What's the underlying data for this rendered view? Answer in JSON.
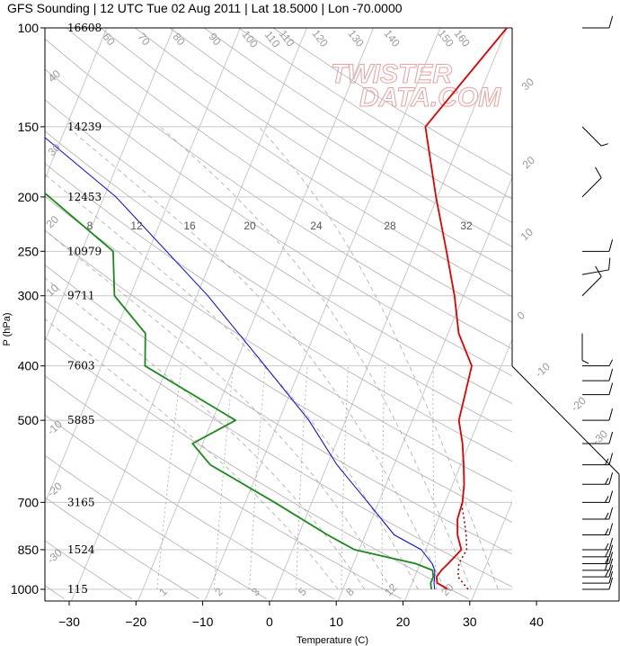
{
  "title": "GFS Sounding | 12 UTC Tue 02 Aug 2011 | Lat 18.5000 | Lon -70.0000",
  "watermark": [
    "TWISTER",
    "DATA.COM"
  ],
  "chart_data": {
    "type": "skew-t",
    "xlabel": "Temperature (C)",
    "ylabel": "P (hPa)",
    "x_ticks": [
      -30,
      -20,
      -10,
      0,
      10,
      20,
      30,
      40
    ],
    "pressure_ticks": [
      {
        "p": 100,
        "label": "100",
        "height": "16608"
      },
      {
        "p": 150,
        "label": "150",
        "height": "14239"
      },
      {
        "p": 200,
        "label": "200",
        "height": "12453"
      },
      {
        "p": 250,
        "label": "250",
        "height": "10979"
      },
      {
        "p": 300,
        "label": "300",
        "height": "9711"
      },
      {
        "p": 400,
        "label": "400",
        "height": "7603"
      },
      {
        "p": 500,
        "label": "500",
        "height": "5885"
      },
      {
        "p": 700,
        "label": "700",
        "height": "3165"
      },
      {
        "p": 850,
        "label": "850",
        "height": "1524"
      },
      {
        "p": 1000,
        "label": "1000",
        "height": "115"
      }
    ],
    "mixing_ratio_labels": [
      "8",
      "12",
      "16",
      "20",
      "24",
      "28",
      "32"
    ],
    "isotherm_labels": [
      "110",
      "100",
      "90",
      "80",
      "70",
      "60",
      "50",
      "40",
      "30",
      "20",
      "10",
      "0",
      "-10",
      "-20",
      "-30",
      "-40"
    ],
    "dry_adiabat_labels": [
      "160",
      "150",
      "140",
      "130",
      "120",
      "110",
      "100",
      "90",
      "80",
      "70",
      "60",
      "50",
      "40",
      "30",
      "20",
      "10"
    ],
    "moist_adiabat_labels": [
      "1",
      "2",
      "3",
      "5",
      "8",
      "12",
      "20"
    ],
    "temperature": {
      "color": "#e00000",
      "points": [
        [
          1000,
          26.5
        ],
        [
          975,
          24.5
        ],
        [
          950,
          24.0
        ],
        [
          925,
          24.3
        ],
        [
          900,
          24.9
        ],
        [
          850,
          26.0
        ],
        [
          800,
          24.5
        ],
        [
          750,
          23.5
        ],
        [
          700,
          23.2
        ],
        [
          650,
          22.3
        ],
        [
          600,
          21.0
        ],
        [
          550,
          19.5
        ],
        [
          500,
          17.5
        ],
        [
          450,
          16.8
        ],
        [
          400,
          16.0
        ],
        [
          350,
          12.0
        ],
        [
          300,
          9.0
        ],
        [
          250,
          5.0
        ],
        [
          200,
          0.0
        ],
        [
          150,
          -6.0
        ],
        [
          100,
          0.0
        ]
      ]
    },
    "parcel_virtual_temperature": {
      "color": "#8b0000",
      "style": "dotted",
      "points": [
        [
          1000,
          29.5
        ],
        [
          950,
          27.2
        ],
        [
          900,
          26.5
        ],
        [
          850,
          26.8
        ],
        [
          800,
          25.8
        ],
        [
          750,
          24.5
        ],
        [
          700,
          23.0
        ]
      ]
    },
    "dewpoint": {
      "color": "#1a8a1a",
      "points": [
        [
          1000,
          24.0
        ],
        [
          975,
          23.5
        ],
        [
          950,
          23.5
        ],
        [
          925,
          23.0
        ],
        [
          900,
          20.0
        ],
        [
          850,
          10.0
        ],
        [
          800,
          5.0
        ],
        [
          700,
          -5.0
        ],
        [
          600,
          -17.0
        ],
        [
          550,
          -21.0
        ],
        [
          500,
          -16.0
        ],
        [
          400,
          -33.0
        ],
        [
          350,
          -35.0
        ],
        [
          300,
          -42.0
        ],
        [
          250,
          -45.0
        ],
        [
          200,
          -58.0
        ],
        [
          150,
          -75.0
        ],
        [
          100,
          -78.0
        ]
      ]
    },
    "wetbulb": {
      "color": "#0000ee",
      "points": [
        [
          1000,
          24.5
        ],
        [
          975,
          24.0
        ],
        [
          950,
          23.7
        ],
        [
          925,
          23.3
        ],
        [
          900,
          22.5
        ],
        [
          850,
          20.0
        ],
        [
          800,
          15.0
        ],
        [
          700,
          9.0
        ],
        [
          600,
          2.0
        ],
        [
          500,
          -5.0
        ],
        [
          400,
          -15.0
        ],
        [
          300,
          -28.0
        ],
        [
          200,
          -48.0
        ],
        [
          150,
          -65.0
        ],
        [
          100,
          -72.0
        ]
      ]
    },
    "wind_barbs": [
      {
        "p": 100,
        "dir": 90,
        "speed": 10
      },
      {
        "p": 150,
        "dir": 135,
        "speed": 5
      },
      {
        "p": 200,
        "dir": 45,
        "speed": 10
      },
      {
        "p": 250,
        "dir": 90,
        "speed": 10
      },
      {
        "p": 275,
        "dir": 80,
        "speed": 10
      },
      {
        "p": 300,
        "dir": 45,
        "speed": 10
      },
      {
        "p": 350,
        "dir": 180,
        "speed": 5
      },
      {
        "p": 400,
        "dir": 90,
        "speed": 5
      },
      {
        "p": 425,
        "dir": 90,
        "speed": 10
      },
      {
        "p": 450,
        "dir": 90,
        "speed": 10
      },
      {
        "p": 500,
        "dir": 90,
        "speed": 10
      },
      {
        "p": 550,
        "dir": 90,
        "speed": 10
      },
      {
        "p": 600,
        "dir": 90,
        "speed": 15
      },
      {
        "p": 650,
        "dir": 90,
        "speed": 15
      },
      {
        "p": 700,
        "dir": 90,
        "speed": 15
      },
      {
        "p": 750,
        "dir": 90,
        "speed": 15
      },
      {
        "p": 800,
        "dir": 90,
        "speed": 15
      },
      {
        "p": 850,
        "dir": 90,
        "speed": 15
      },
      {
        "p": 875,
        "dir": 90,
        "speed": 15
      },
      {
        "p": 900,
        "dir": 90,
        "speed": 15
      },
      {
        "p": 925,
        "dir": 90,
        "speed": 20
      },
      {
        "p": 950,
        "dir": 90,
        "speed": 15
      },
      {
        "p": 975,
        "dir": 90,
        "speed": 10
      },
      {
        "p": 1000,
        "dir": 90,
        "speed": 10
      }
    ]
  }
}
